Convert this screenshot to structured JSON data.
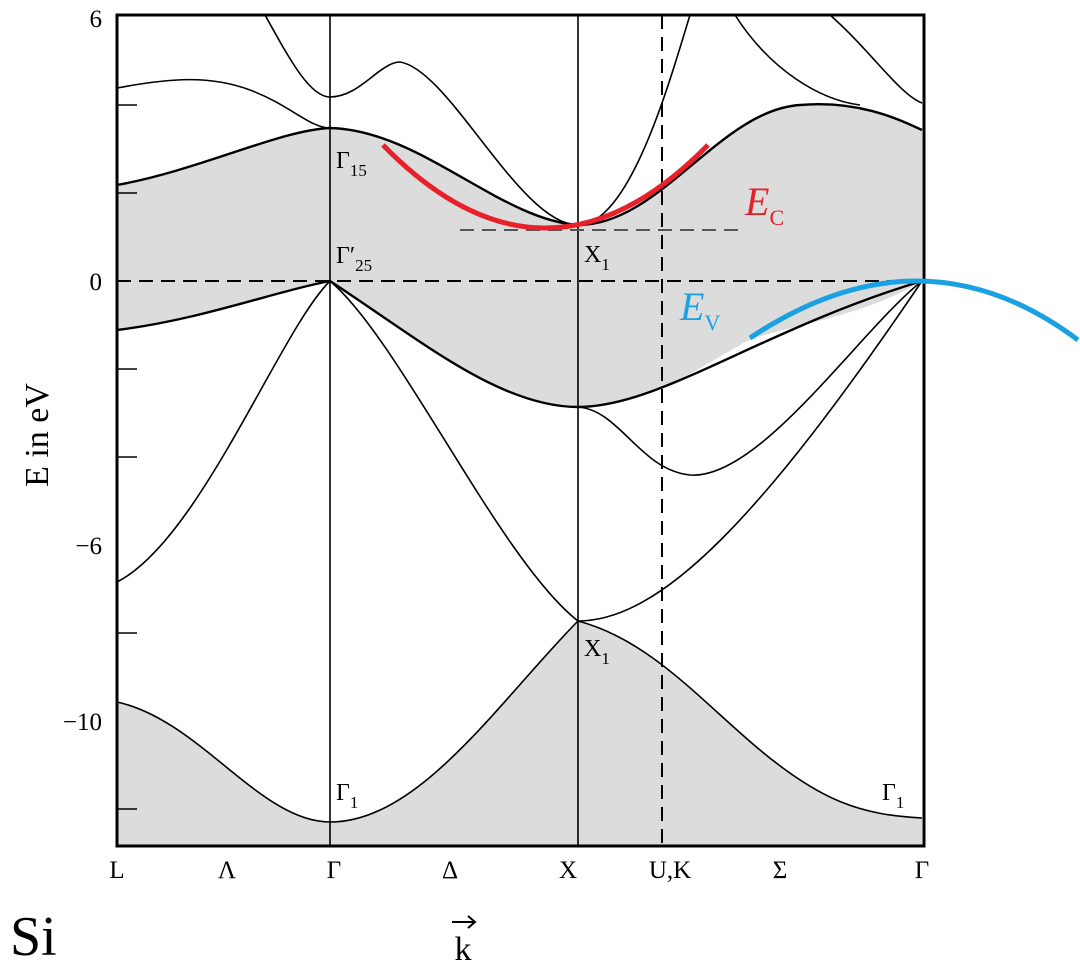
{
  "y_axis": {
    "label": "E in eV",
    "ticks": [
      "6",
      "0",
      "−6",
      "−10"
    ]
  },
  "x_axis": {
    "labels": [
      "L",
      "Λ",
      "Γ",
      "Δ",
      "X",
      "U,K",
      "Σ",
      "Γ"
    ],
    "vector": "k"
  },
  "points": [
    {
      "symbol": "Γ",
      "sub": "15"
    },
    {
      "symbol": "Γ′",
      "sub": "25"
    },
    {
      "symbol": "X",
      "sub": "1"
    },
    {
      "symbol": "X",
      "sub": "1"
    },
    {
      "symbol": "Γ",
      "sub": "1"
    },
    {
      "symbol": "Γ",
      "sub": "1"
    }
  ],
  "material": "Si",
  "conduction": {
    "symbol": "E",
    "sub": "C"
  },
  "valence": {
    "symbol": "E",
    "sub": "V"
  }
}
